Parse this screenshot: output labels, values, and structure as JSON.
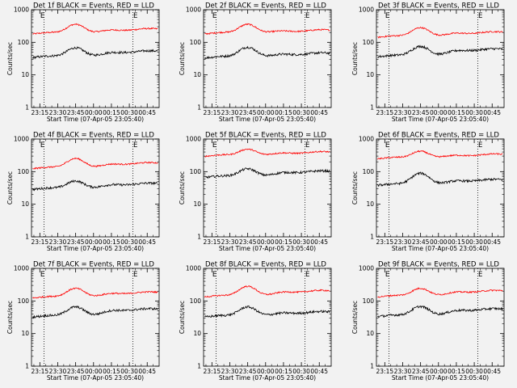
{
  "window": {
    "background": "#f2f2f2"
  },
  "chart_data": {
    "type": "line",
    "layout": {
      "rows": 3,
      "cols": 3
    },
    "x_ticks": [
      "23:15",
      "23:30",
      "23:45",
      "00:00",
      "00:15",
      "00:30",
      "00:45"
    ],
    "x_range_minutes": [
      -7,
      100
    ],
    "xlabel": "Start Time (07-Apr-05 23:05:40)",
    "ylabel": "Counts/sec",
    "y_scale": "log",
    "ylim": [
      1,
      1000
    ],
    "y_ticks": [
      "1",
      "10",
      "100",
      "1000"
    ],
    "vlines_minutes": [
      3.5,
      78
    ],
    "markers": [
      {
        "label": "E",
        "x_minutes": 0
      },
      {
        "label": "E",
        "x_minutes": 78
      }
    ],
    "series_colors": {
      "events": "#000000",
      "lld": "#ff0000"
    },
    "panels": [
      {
        "title": "Det 1f BLACK = Events, RED = LLD",
        "events": {
          "base": 36,
          "peak": 72,
          "tail": 52
        },
        "lld": {
          "base": 190,
          "peak": 380,
          "tail": 250
        }
      },
      {
        "title": "Det 2f BLACK = Events, RED = LLD",
        "events": {
          "base": 35,
          "peak": 75,
          "tail": 45
        },
        "lld": {
          "base": 190,
          "peak": 380,
          "tail": 230
        }
      },
      {
        "title": "Det 3f BLACK = Events, RED = LLD",
        "events": {
          "base": 38,
          "peak": 80,
          "tail": 60
        },
        "lld": {
          "base": 150,
          "peak": 300,
          "tail": 200
        }
      },
      {
        "title": "Det 4f BLACK = Events, RED = LLD",
        "events": {
          "base": 30,
          "peak": 55,
          "tail": 42
        },
        "lld": {
          "base": 130,
          "peak": 270,
          "tail": 180
        }
      },
      {
        "title": "Det 5f BLACK = Events, RED = LLD",
        "events": {
          "base": 70,
          "peak": 130,
          "tail": 100
        },
        "lld": {
          "base": 310,
          "peak": 520,
          "tail": 390
        }
      },
      {
        "title": "Det 6f BLACK = Events, RED = LLD",
        "events": {
          "base": 40,
          "peak": 95,
          "tail": 55
        },
        "lld": {
          "base": 260,
          "peak": 450,
          "tail": 330
        }
      },
      {
        "title": "Det 7f BLACK = Events, RED = LLD",
        "events": {
          "base": 34,
          "peak": 70,
          "tail": 55
        },
        "lld": {
          "base": 130,
          "peak": 260,
          "tail": 180
        }
      },
      {
        "title": "Det 8f BLACK = Events, RED = LLD",
        "events": {
          "base": 34,
          "peak": 70,
          "tail": 45
        },
        "lld": {
          "base": 140,
          "peak": 300,
          "tail": 200
        }
      },
      {
        "title": "Det 9f BLACK = Events, RED = LLD",
        "events": {
          "base": 35,
          "peak": 72,
          "tail": 55
        },
        "lld": {
          "base": 140,
          "peak": 260,
          "tail": 200
        }
      }
    ]
  }
}
